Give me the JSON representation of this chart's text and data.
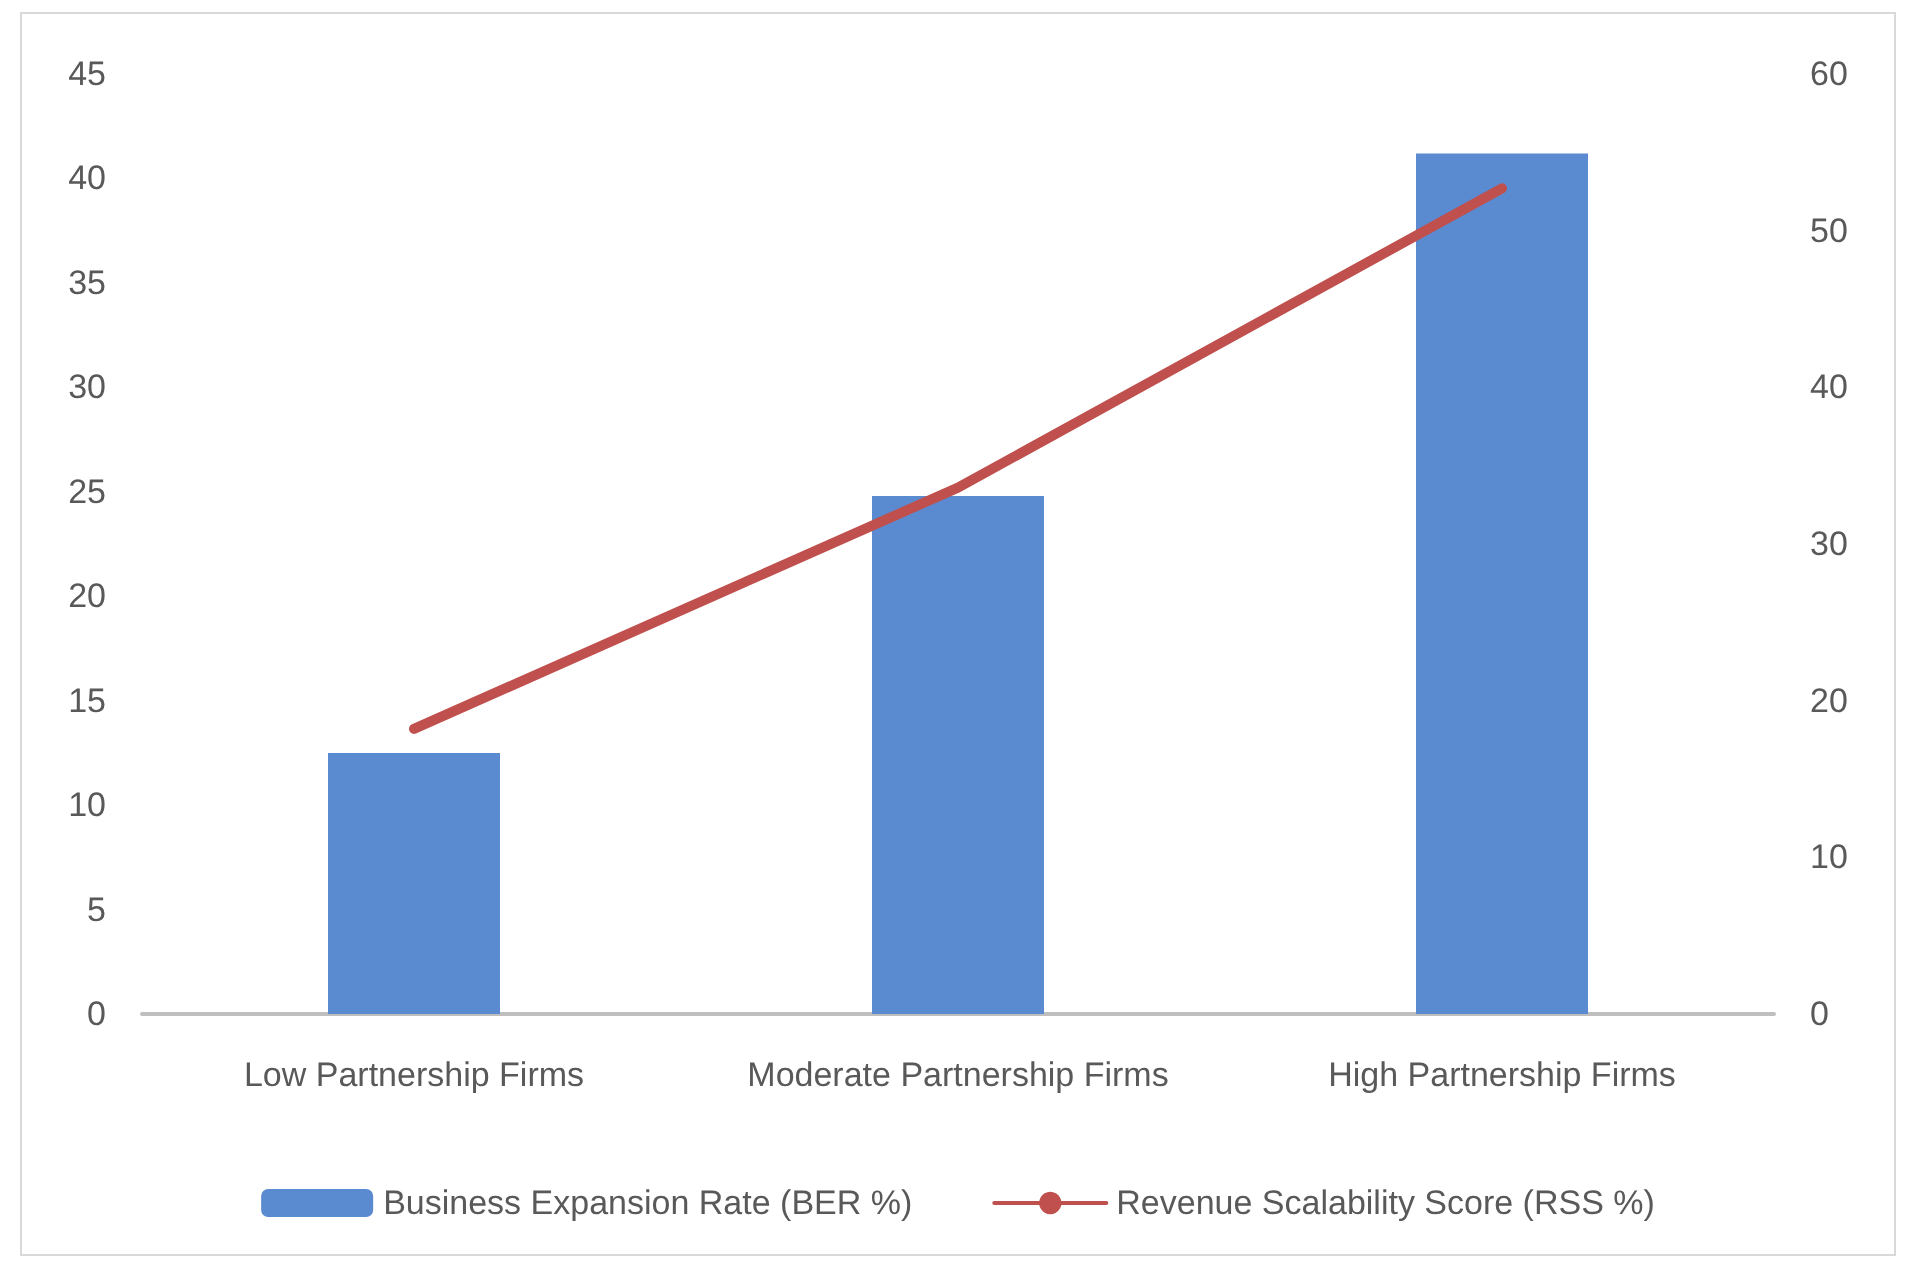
{
  "chart_data": {
    "type": "bar",
    "categories": [
      "Low Partnership Firms",
      "Moderate Partnership Firms",
      "High Partnership Firms"
    ],
    "series": [
      {
        "name": "Business Expansion Rate (BER %)",
        "color": "#5a8ad0",
        "values": [
          12.5,
          24.8,
          41.2
        ]
      },
      {
        "name": "Revenue Scalability Score (RSS %)",
        "type": "line",
        "axis": "y2",
        "color": "#c0504d",
        "values": [
          18.2,
          33.6,
          52.7
        ]
      }
    ],
    "ylim": [
      0,
      45
    ],
    "yticks": [
      0,
      5,
      10,
      15,
      20,
      25,
      30,
      35,
      40,
      45
    ],
    "y2lim": [
      0,
      60
    ],
    "y2ticks": [
      0,
      10,
      20,
      30,
      40,
      50,
      60
    ],
    "grid": false,
    "legend": "bottom",
    "marker": "none",
    "line_style": "solid"
  }
}
